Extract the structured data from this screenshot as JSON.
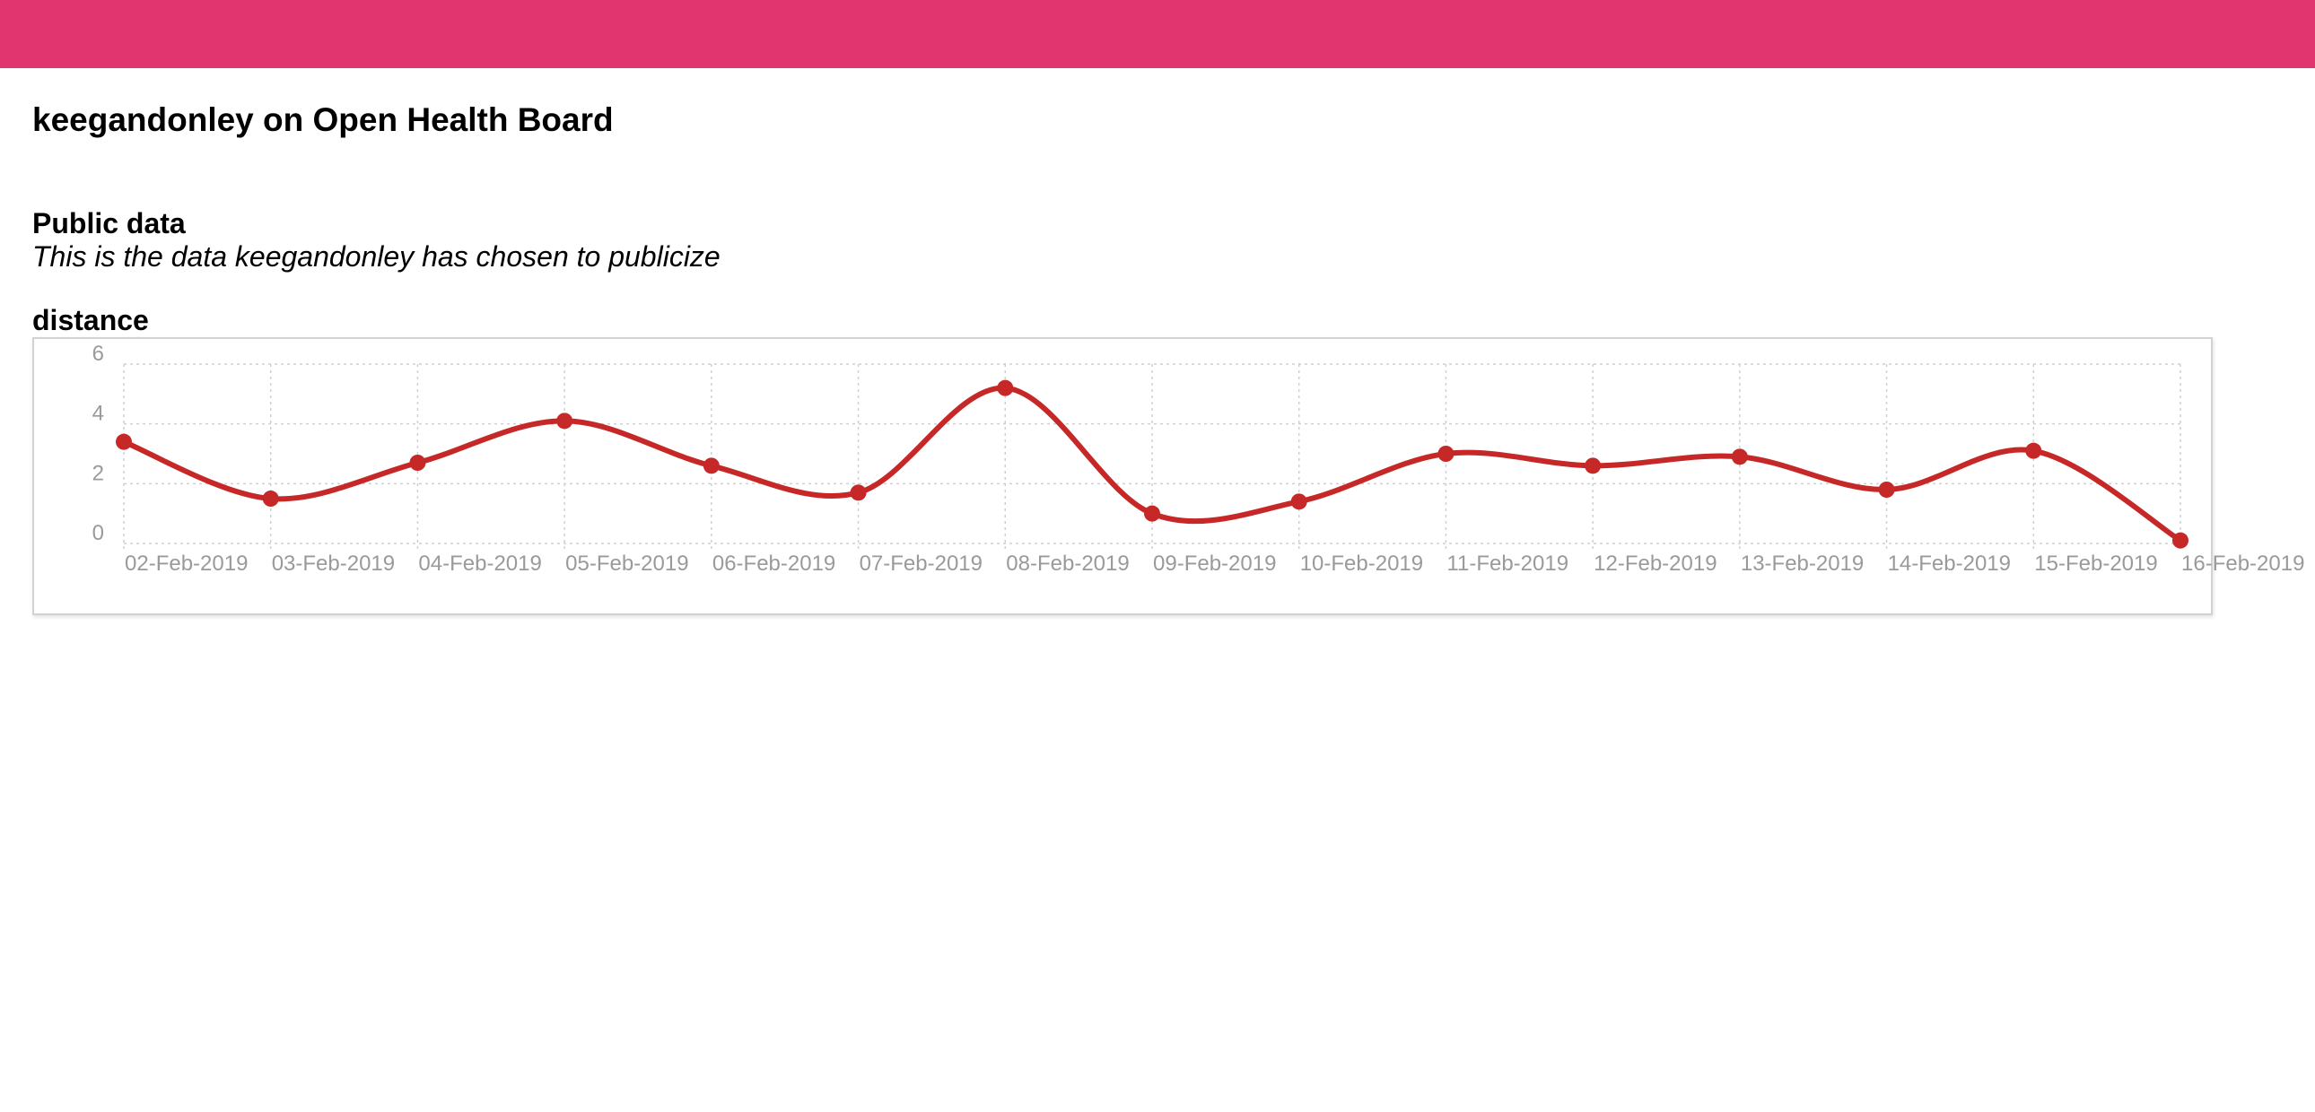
{
  "header": {
    "bar_color": "#e0356e"
  },
  "page": {
    "title": "keegandonley on Open Health Board"
  },
  "public_section": {
    "title": "Public data",
    "subtitle": "This is the data keegandonley has chosen to publicize"
  },
  "chart_data": {
    "type": "line",
    "title": "distance",
    "xlabel": "",
    "ylabel": "",
    "categories": [
      "02-Feb-2019",
      "03-Feb-2019",
      "04-Feb-2019",
      "05-Feb-2019",
      "06-Feb-2019",
      "07-Feb-2019",
      "08-Feb-2019",
      "09-Feb-2019",
      "10-Feb-2019",
      "11-Feb-2019",
      "12-Feb-2019",
      "13-Feb-2019",
      "14-Feb-2019",
      "15-Feb-2019",
      "16-Feb-2019"
    ],
    "series": [
      {
        "values": [
          3.4,
          1.5,
          2.7,
          4.1,
          2.6,
          1.7,
          5.2,
          1.0,
          1.4,
          3.0,
          2.6,
          2.9,
          1.8,
          3.1,
          0.1
        ],
        "color": "#c62828"
      }
    ],
    "ylim": [
      0,
      6
    ],
    "yticks": [
      0,
      2,
      4,
      6
    ],
    "grid": true,
    "legend": "none",
    "smooth": true
  }
}
